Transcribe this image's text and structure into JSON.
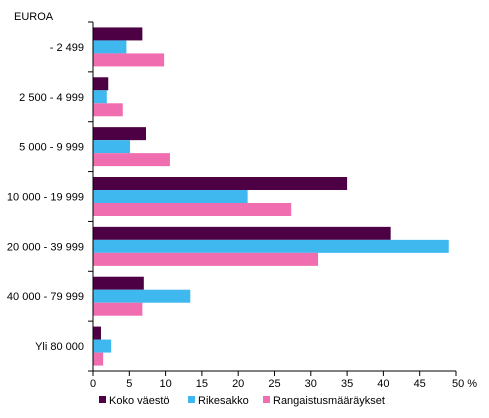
{
  "chart_data": {
    "type": "bar",
    "orientation": "horizontal",
    "unit_label": "EUROA",
    "categories": [
      "- 2 499",
      "2 500 - 4 999",
      "5 000 - 9 999",
      "10 000 - 19 999",
      "20 000 - 39 999",
      "40 000 - 79 999",
      "Yli 80 000"
    ],
    "series": [
      {
        "name": "Koko väestö",
        "color": "#4d0043",
        "values": [
          6.8,
          2.1,
          7.3,
          35.0,
          41.0,
          7.0,
          1.1
        ]
      },
      {
        "name": "Rikesakko",
        "color": "#3fb8f0",
        "values": [
          4.6,
          1.9,
          5.1,
          21.3,
          49.0,
          13.4,
          2.5
        ]
      },
      {
        "name": "Rangaistusmääräykset",
        "color": "#f06eb0",
        "values": [
          9.8,
          4.1,
          10.6,
          27.3,
          31.0,
          6.8,
          1.4
        ]
      }
    ],
    "xlim": [
      0,
      50
    ],
    "x_ticks": [
      "0",
      "5",
      "10",
      "15",
      "20",
      "25",
      "30",
      "35",
      "40",
      "45",
      "50 %"
    ],
    "grid": false,
    "legend_position": "bottom"
  }
}
